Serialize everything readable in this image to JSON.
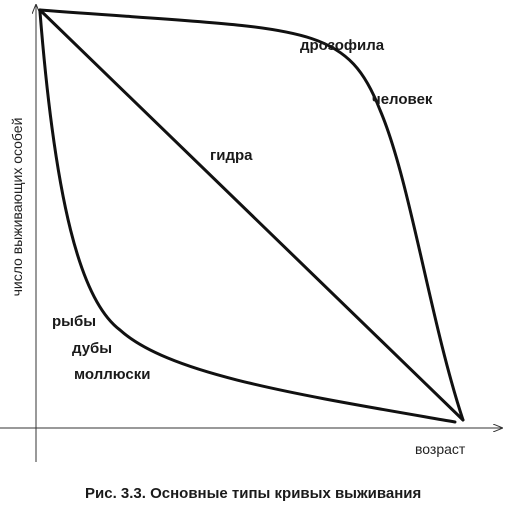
{
  "figure": {
    "caption": "Рис. 3.3. Основные типы кривых выживания",
    "y_axis_label": "число выживающих особей",
    "x_axis_label": "возраст"
  },
  "curves": {
    "convex": {
      "label_1": "дрозофила",
      "label_2": "человек"
    },
    "diagonal": {
      "label": "гидра"
    },
    "concave": {
      "label_1": "рыбы",
      "label_2": "дубы",
      "label_3": "моллюски"
    }
  },
  "colors": {
    "line": "#111111",
    "axis": "#333333",
    "background": "#ffffff"
  }
}
